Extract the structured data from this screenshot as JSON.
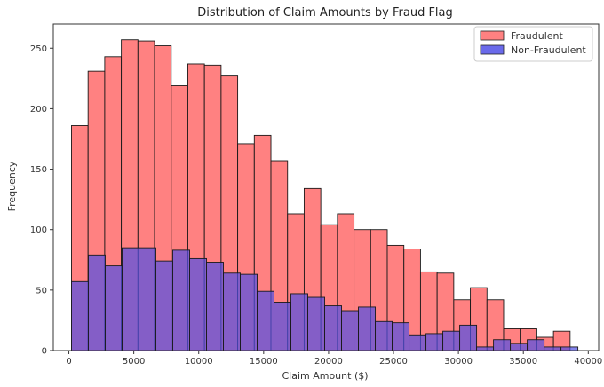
{
  "chart_data": {
    "type": "bar",
    "subtype": "histogram",
    "title": "Distribution of Claim Amounts by Fraud Flag",
    "xlabel": "Claim Amount ($)",
    "ylabel": "Frequency",
    "xlim": [
      -1200,
      40800
    ],
    "ylim": [
      0,
      270
    ],
    "x_ticks": [
      0,
      5000,
      10000,
      15000,
      20000,
      25000,
      30000,
      35000,
      40000
    ],
    "y_ticks": [
      0,
      50,
      100,
      150,
      200,
      250
    ],
    "grid": false,
    "legend_position": "top-right",
    "series": [
      {
        "name": "Fraudulent",
        "color": "#ff6b6b",
        "bin_edges": [
          200,
          1480,
          2760,
          4040,
          5320,
          6600,
          7880,
          9160,
          10440,
          11720,
          13000,
          14280,
          15560,
          16840,
          18120,
          19400,
          20680,
          21960,
          23240,
          24520,
          25800,
          27080,
          28360,
          29640,
          30920,
          32200,
          33480,
          34760,
          36040,
          37320,
          38600
        ],
        "values": [
          186,
          231,
          243,
          257,
          256,
          252,
          219,
          237,
          236,
          227,
          171,
          178,
          157,
          113,
          134,
          104,
          113,
          100,
          100,
          87,
          84,
          65,
          64,
          42,
          52,
          42,
          18,
          18,
          11,
          16
        ]
      },
      {
        "name": "Non-Fraudulent",
        "color": "#6a5acd",
        "bin_edges": [
          200,
          1500,
          2800,
          4100,
          5400,
          6700,
          8000,
          9300,
          10600,
          11900,
          13200,
          14500,
          15800,
          17100,
          18400,
          19700,
          21000,
          22300,
          23600,
          24900,
          26200,
          27500,
          28800,
          30100,
          31400,
          32700,
          34000,
          35300,
          36600,
          37900,
          39200
        ],
        "values": [
          57,
          79,
          70,
          85,
          85,
          74,
          83,
          76,
          73,
          64,
          63,
          49,
          40,
          47,
          44,
          37,
          33,
          36,
          24,
          23,
          13,
          14,
          16,
          21,
          3,
          9,
          6,
          9,
          3,
          3
        ]
      }
    ]
  }
}
